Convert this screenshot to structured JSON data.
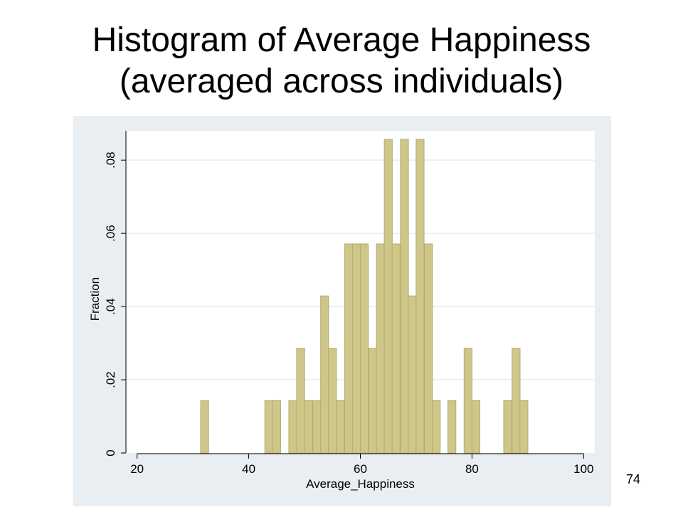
{
  "slide": {
    "title_line1": "Histogram of Average Happiness",
    "title_line2": "(averaged across individuals)",
    "page_number": "74"
  },
  "colors": {
    "outer_background": "#e8eef2",
    "plot_background": "#ffffff",
    "bar_fill": "#cfc68a",
    "bar_stroke": "#b4ab6c",
    "grid": "#e6ecef",
    "axis": "#000000"
  },
  "chart_data": {
    "type": "bar",
    "title": "",
    "xlabel": "Average_Happiness",
    "ylabel": "Fraction",
    "xlim": [
      18,
      102
    ],
    "ylim": [
      0,
      0.088
    ],
    "grid": true,
    "bin_width": 1.43,
    "x_ticks": [
      20,
      40,
      60,
      80,
      100
    ],
    "x_tick_labels": [
      "20",
      "40",
      "60",
      "80",
      "100"
    ],
    "y_ticks": [
      0,
      0.02,
      0.04,
      0.06,
      0.08
    ],
    "y_tick_labels": [
      "0",
      ".02",
      ".04",
      ".06",
      ".08"
    ],
    "bins": [
      {
        "x": 32.1,
        "value": 0.0143
      },
      {
        "x": 43.6,
        "value": 0.0143
      },
      {
        "x": 45.0,
        "value": 0.0143
      },
      {
        "x": 47.9,
        "value": 0.0143
      },
      {
        "x": 49.3,
        "value": 0.0286
      },
      {
        "x": 50.7,
        "value": 0.0143
      },
      {
        "x": 52.2,
        "value": 0.0143
      },
      {
        "x": 53.6,
        "value": 0.0429
      },
      {
        "x": 55.0,
        "value": 0.0286
      },
      {
        "x": 56.4,
        "value": 0.0143
      },
      {
        "x": 57.9,
        "value": 0.0571
      },
      {
        "x": 59.3,
        "value": 0.0571
      },
      {
        "x": 60.7,
        "value": 0.0571
      },
      {
        "x": 62.2,
        "value": 0.0286
      },
      {
        "x": 63.6,
        "value": 0.0571
      },
      {
        "x": 65.0,
        "value": 0.0857
      },
      {
        "x": 66.4,
        "value": 0.0571
      },
      {
        "x": 67.9,
        "value": 0.0857
      },
      {
        "x": 69.3,
        "value": 0.0429
      },
      {
        "x": 70.7,
        "value": 0.0857
      },
      {
        "x": 72.2,
        "value": 0.0571
      },
      {
        "x": 73.6,
        "value": 0.0143
      },
      {
        "x": 76.4,
        "value": 0.0143
      },
      {
        "x": 79.3,
        "value": 0.0286
      },
      {
        "x": 80.7,
        "value": 0.0143
      },
      {
        "x": 86.4,
        "value": 0.0143
      },
      {
        "x": 87.9,
        "value": 0.0286
      },
      {
        "x": 89.3,
        "value": 0.0143
      }
    ]
  }
}
